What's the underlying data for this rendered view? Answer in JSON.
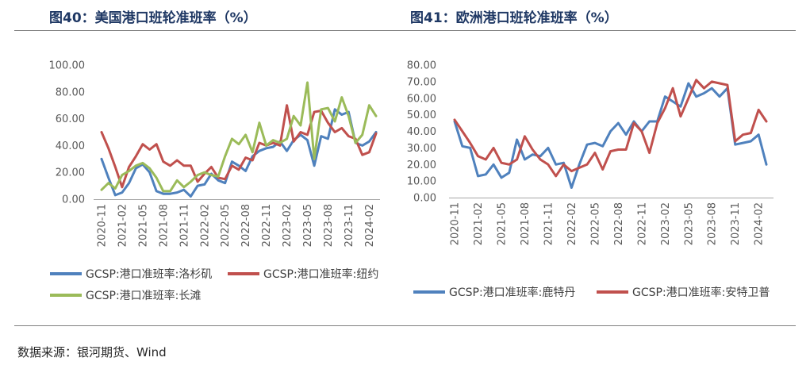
{
  "chart_data": [
    {
      "type": "line",
      "title": "图40：美国港口班轮准班率（%）",
      "x": [
        "2020-11",
        "2020-12",
        "2021-01",
        "2021-02",
        "2021-03",
        "2021-04",
        "2021-05",
        "2021-06",
        "2021-07",
        "2021-08",
        "2021-09",
        "2021-10",
        "2021-11",
        "2021-12",
        "2022-01",
        "2022-02",
        "2022-03",
        "2022-04",
        "2022-05",
        "2022-06",
        "2022-07",
        "2022-08",
        "2022-09",
        "2022-10",
        "2022-11",
        "2022-12",
        "2023-01",
        "2023-02",
        "2023-03",
        "2023-04",
        "2023-05",
        "2023-06",
        "2023-07",
        "2023-08",
        "2023-09",
        "2023-10",
        "2023-11",
        "2023-12",
        "2024-01",
        "2024-02",
        "2024-03"
      ],
      "x_tick_labels": [
        "2020-11",
        "2021-02",
        "2021-05",
        "2021-08",
        "2021-11",
        "2022-02",
        "2022-05",
        "2022-08",
        "2022-11",
        "2023-02",
        "2023-05",
        "2023-08",
        "2023-11",
        "2024-02"
      ],
      "y_tick_labels": [
        "0.00",
        "20.00",
        "40.00",
        "60.00",
        "80.00",
        "100.00"
      ],
      "ylim": [
        0,
        100
      ],
      "grid": false,
      "legend": "bottom",
      "series": [
        {
          "name": "GCSP:港口准班率:洛杉矶",
          "color": "#4f81bd",
          "values": [
            30,
            16,
            3,
            5,
            12,
            23,
            26,
            20,
            6,
            4,
            4,
            5,
            7,
            2,
            10,
            11,
            19,
            14,
            12,
            28,
            25,
            21,
            32,
            36,
            38,
            39,
            43,
            36,
            44,
            48,
            44,
            25,
            47,
            45,
            67,
            63,
            65,
            42,
            40,
            43,
            50
          ]
        },
        {
          "name": "GCSP:港口准班率:纽约",
          "color": "#c0504d",
          "values": [
            50,
            38,
            24,
            9,
            24,
            32,
            41,
            37,
            41,
            28,
            25,
            29,
            25,
            25,
            13,
            19,
            24,
            16,
            15,
            25,
            22,
            31,
            29,
            42,
            40,
            42,
            40,
            70,
            43,
            50,
            48,
            65,
            66,
            57,
            50,
            53,
            47,
            45,
            33,
            35,
            49
          ]
        },
        {
          "name": "GCSP:港口准班率:长滩",
          "color": "#9bbb59",
          "values": [
            7,
            12,
            8,
            18,
            21,
            25,
            27,
            23,
            16,
            6,
            6,
            14,
            9,
            13,
            18,
            20,
            18,
            17,
            32,
            45,
            41,
            48,
            35,
            57,
            40,
            44,
            42,
            45,
            62,
            55,
            87,
            30,
            67,
            68,
            58,
            76,
            62,
            42,
            48,
            70,
            62
          ]
        }
      ]
    },
    {
      "type": "line",
      "title": "图41：欧洲港口班轮准班率（%）",
      "x": [
        "2020-11",
        "2020-12",
        "2021-01",
        "2021-02",
        "2021-03",
        "2021-04",
        "2021-05",
        "2021-06",
        "2021-07",
        "2021-08",
        "2021-09",
        "2021-10",
        "2021-11",
        "2021-12",
        "2022-01",
        "2022-02",
        "2022-03",
        "2022-04",
        "2022-05",
        "2022-06",
        "2022-07",
        "2022-08",
        "2022-09",
        "2022-10",
        "2022-11",
        "2022-12",
        "2023-01",
        "2023-02",
        "2023-03",
        "2023-04",
        "2023-05",
        "2023-06",
        "2023-07",
        "2023-08",
        "2023-09",
        "2023-10",
        "2023-11",
        "2023-12",
        "2024-01",
        "2024-02",
        "2024-03"
      ],
      "x_tick_labels": [
        "2020-11",
        "2021-02",
        "2021-05",
        "2021-08",
        "2021-11",
        "2022-02",
        "2022-05",
        "2022-08",
        "2022-11",
        "2023-02",
        "2023-05",
        "2023-08",
        "2023-11",
        "2024-02"
      ],
      "y_tick_labels": [
        "0.00",
        "10.00",
        "20.00",
        "30.00",
        "40.00",
        "50.00",
        "60.00",
        "70.00",
        "80.00"
      ],
      "ylim": [
        0,
        80
      ],
      "grid": false,
      "legend": "bottom",
      "series": [
        {
          "name": "GCSP:港口准班率:鹿特丹",
          "color": "#4f81bd",
          "values": [
            46,
            31,
            30,
            13,
            14,
            20,
            12,
            15,
            35,
            23,
            26,
            25,
            30,
            20,
            21,
            6,
            20,
            32,
            33,
            31,
            40,
            45,
            38,
            46,
            40,
            46,
            46,
            61,
            58,
            55,
            69,
            61,
            63,
            66,
            61,
            66,
            32,
            33,
            34,
            38,
            20
          ]
        },
        {
          "name": "GCSP:港口准班率:安特卫普",
          "color": "#c0504d",
          "values": [
            47,
            40,
            33,
            25,
            23,
            30,
            21,
            20,
            23,
            37,
            29,
            23,
            20,
            13,
            20,
            16,
            18,
            20,
            27,
            17,
            28,
            29,
            29,
            45,
            40,
            27,
            45,
            54,
            66,
            49,
            60,
            71,
            66,
            70,
            69,
            68,
            34,
            38,
            39,
            53,
            46
          ]
        }
      ]
    }
  ],
  "footer": {
    "source": "数据来源：银河期货、Wind"
  }
}
